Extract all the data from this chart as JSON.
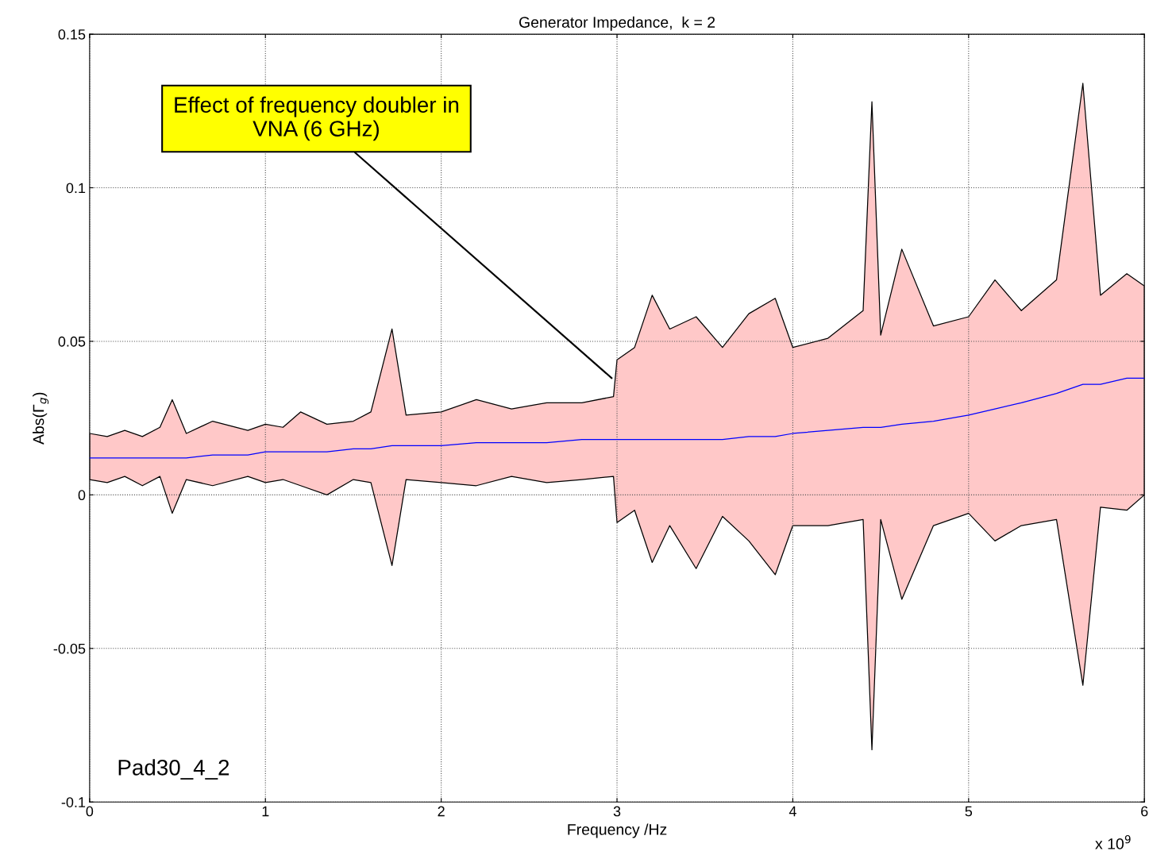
{
  "chart_data": {
    "type": "line",
    "title": "Generator Impedance,  k = 2",
    "xlabel": "Frequency /Hz",
    "ylabel": "Abs(Γ$_{g}$)",
    "x": [
      0,
      0.1,
      0.2,
      0.3,
      0.4,
      0.47,
      0.55,
      0.7,
      0.9,
      1.0,
      1.1,
      1.2,
      1.35,
      1.5,
      1.6,
      1.72,
      1.8,
      2.0,
      2.2,
      2.4,
      2.6,
      2.8,
      2.98,
      3.0,
      3.1,
      3.2,
      3.3,
      3.45,
      3.6,
      3.75,
      3.9,
      4.0,
      4.2,
      4.4,
      4.45,
      4.5,
      4.62,
      4.8,
      5.0,
      5.15,
      5.3,
      5.5,
      5.65,
      5.75,
      5.9,
      6.0
    ],
    "series": [
      {
        "color": "#0000ff",
        "values": [
          0.012,
          0.012,
          0.012,
          0.012,
          0.012,
          0.012,
          0.012,
          0.013,
          0.013,
          0.014,
          0.014,
          0.014,
          0.014,
          0.015,
          0.015,
          0.016,
          0.016,
          0.016,
          0.017,
          0.017,
          0.017,
          0.018,
          0.018,
          0.018,
          0.018,
          0.018,
          0.018,
          0.018,
          0.018,
          0.019,
          0.019,
          0.02,
          0.021,
          0.022,
          0.022,
          0.022,
          0.023,
          0.024,
          0.026,
          0.028,
          0.03,
          0.033,
          0.036,
          0.036,
          0.038,
          0.038
        ],
        "lower": [
          0.005,
          0.004,
          0.006,
          0.003,
          0.006,
          -0.006,
          0.005,
          0.003,
          0.006,
          0.004,
          0.005,
          0.003,
          0.0,
          0.005,
          0.004,
          -0.023,
          0.005,
          0.004,
          0.003,
          0.006,
          0.004,
          0.005,
          0.006,
          -0.009,
          -0.005,
          -0.022,
          -0.01,
          -0.024,
          -0.007,
          -0.015,
          -0.026,
          -0.01,
          -0.01,
          -0.008,
          -0.083,
          -0.008,
          -0.034,
          -0.01,
          -0.006,
          -0.015,
          -0.01,
          -0.008,
          -0.062,
          -0.004,
          -0.005,
          0.0
        ],
        "upper": [
          0.02,
          0.019,
          0.021,
          0.019,
          0.022,
          0.031,
          0.02,
          0.024,
          0.021,
          0.023,
          0.022,
          0.027,
          0.023,
          0.024,
          0.027,
          0.054,
          0.026,
          0.027,
          0.031,
          0.028,
          0.03,
          0.03,
          0.032,
          0.044,
          0.048,
          0.065,
          0.054,
          0.058,
          0.048,
          0.059,
          0.064,
          0.048,
          0.051,
          0.06,
          0.128,
          0.052,
          0.08,
          0.055,
          0.058,
          0.07,
          0.06,
          0.07,
          0.134,
          0.065,
          0.072,
          0.068
        ]
      }
    ],
    "xlim": [
      0,
      6
    ],
    "xticks": [
      0,
      1,
      2,
      3,
      4,
      5,
      6
    ],
    "ylim": [
      -0.1,
      0.15
    ],
    "yticks": [
      -0.1,
      -0.05,
      0,
      0.05,
      0.1,
      0.15
    ],
    "grid": true,
    "legend": false,
    "annotations": [
      {
        "text": "Effect of frequency doubler in\nVNA (6 GHz)",
        "x": 2.97,
        "y": 0.038
      },
      "Pad30_4_2",
      "x 10$^{9}$"
    ]
  }
}
